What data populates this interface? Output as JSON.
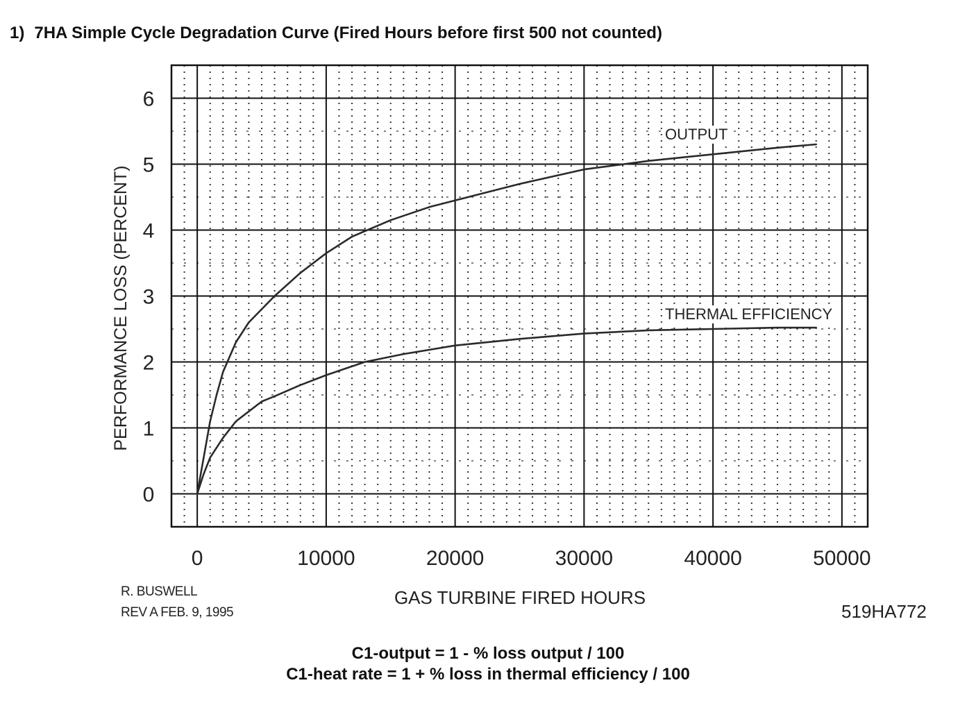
{
  "heading": {
    "number": "1)",
    "title": "7HA Simple Cycle Degradation Curve (Fired Hours before first 500 not counted)"
  },
  "chart_data": {
    "type": "line",
    "title": "",
    "xlabel": "GAS TURBINE FIRED HOURS",
    "ylabel": "PERFORMANCE LOSS (PERCENT)",
    "xlim": [
      -2000,
      52000
    ],
    "ylim": [
      -0.5,
      6.5
    ],
    "x_ticks": [
      0,
      10000,
      20000,
      30000,
      40000,
      50000
    ],
    "y_ticks": [
      0,
      1,
      2,
      3,
      4,
      5,
      6
    ],
    "grid": true,
    "series": [
      {
        "name": "OUTPUT",
        "points": [
          [
            0,
            0.0
          ],
          [
            500,
            0.55
          ],
          [
            1000,
            1.1
          ],
          [
            1500,
            1.5
          ],
          [
            2000,
            1.85
          ],
          [
            3000,
            2.3
          ],
          [
            4000,
            2.6
          ],
          [
            5000,
            2.8
          ],
          [
            6000,
            3.0
          ],
          [
            8000,
            3.35
          ],
          [
            10000,
            3.65
          ],
          [
            12000,
            3.9
          ],
          [
            15000,
            4.15
          ],
          [
            18000,
            4.35
          ],
          [
            20000,
            4.45
          ],
          [
            25000,
            4.7
          ],
          [
            30000,
            4.92
          ],
          [
            35000,
            5.05
          ],
          [
            40000,
            5.15
          ],
          [
            45000,
            5.25
          ],
          [
            48000,
            5.3
          ]
        ]
      },
      {
        "name": "THERMAL EFFICIENCY",
        "points": [
          [
            0,
            0.0
          ],
          [
            500,
            0.3
          ],
          [
            1000,
            0.55
          ],
          [
            2000,
            0.85
          ],
          [
            3000,
            1.1
          ],
          [
            4000,
            1.25
          ],
          [
            5000,
            1.4
          ],
          [
            6000,
            1.48
          ],
          [
            8000,
            1.65
          ],
          [
            10000,
            1.8
          ],
          [
            13000,
            2.0
          ],
          [
            16000,
            2.12
          ],
          [
            20000,
            2.25
          ],
          [
            25000,
            2.35
          ],
          [
            30000,
            2.43
          ],
          [
            35000,
            2.48
          ],
          [
            40000,
            2.5
          ],
          [
            45000,
            2.52
          ],
          [
            48000,
            2.52
          ]
        ]
      }
    ]
  },
  "credits": {
    "author": "R. BUSWELL",
    "revision": "REV A  FEB. 9, 1995"
  },
  "drawing_number": "519HA772",
  "formulas": {
    "output": "C1-output = 1 - % loss output / 100",
    "heat_rate": "C1-heat rate = 1 + % loss in thermal efficiency / 100"
  }
}
